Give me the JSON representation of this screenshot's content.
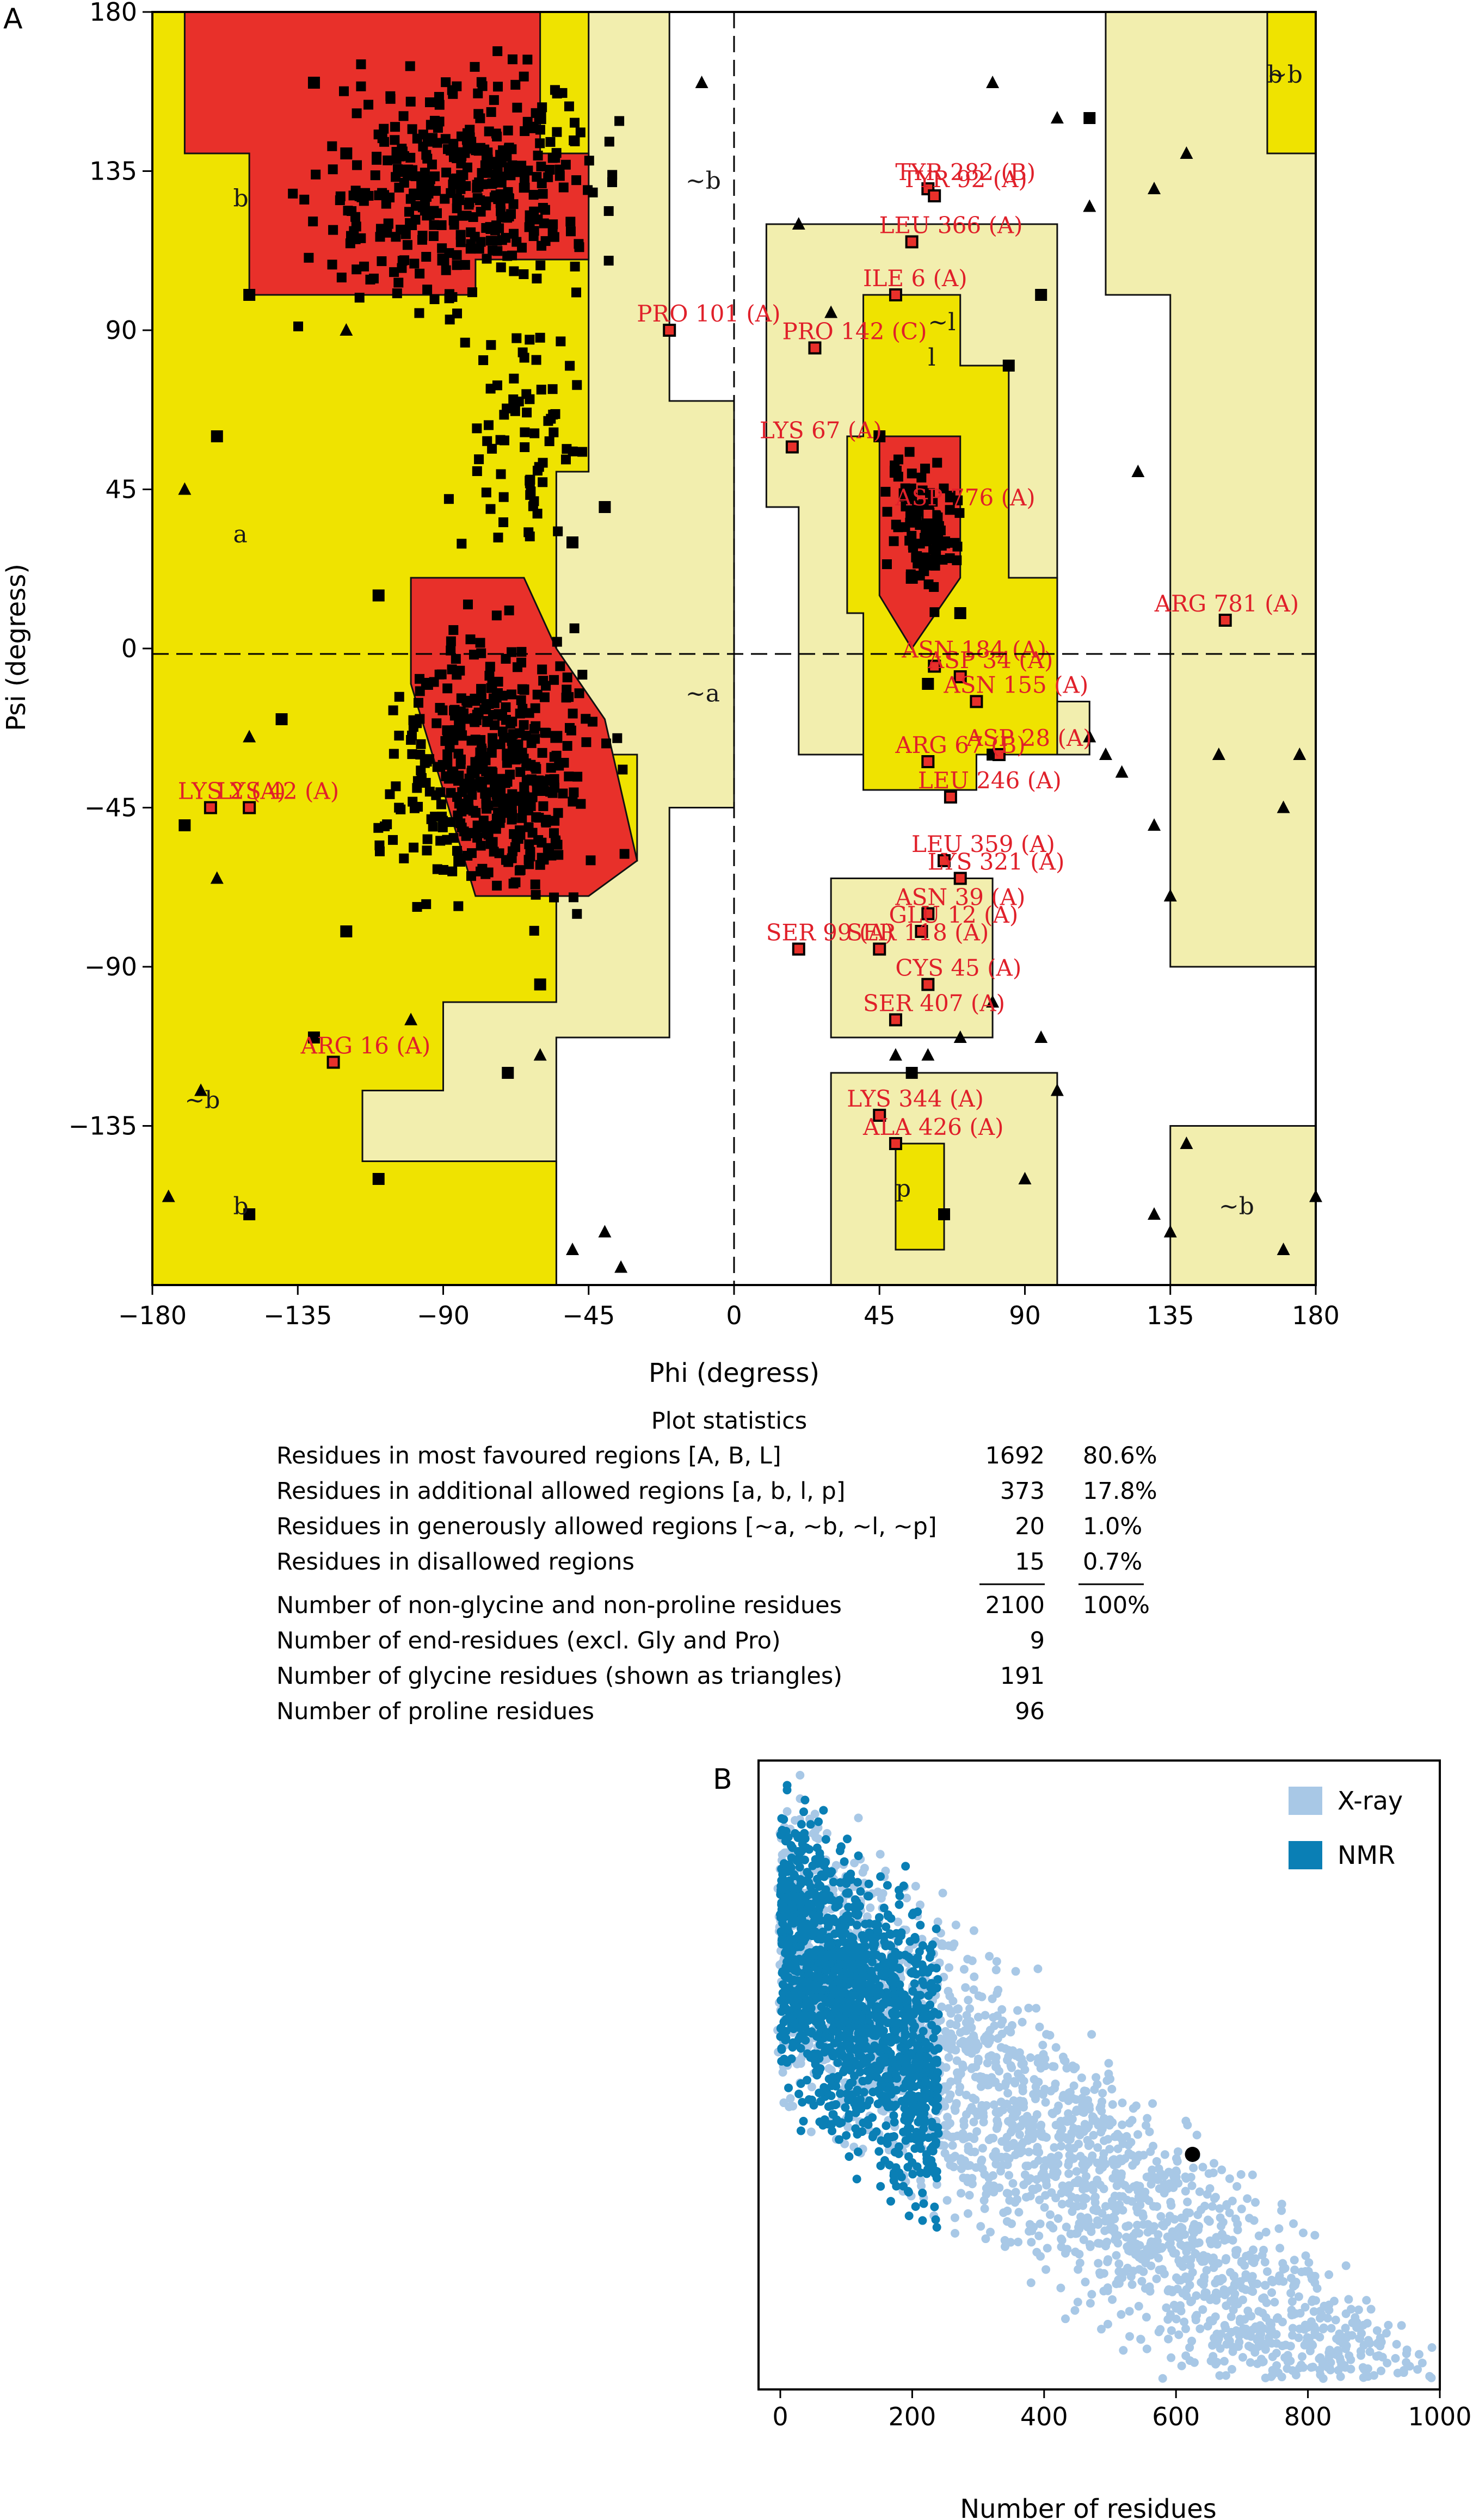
{
  "panel_labels": {
    "a": "A",
    "b": "B"
  },
  "colors": {
    "core": "#e8302a",
    "allowed": "#efe300",
    "generous": "#f2eeae",
    "point": "#000000",
    "outlier_fill": "#e8302a",
    "label_red": "#e0202a",
    "xray": "#a8c8e6",
    "nmr": "#0a7fb5"
  },
  "region_labels": [
    "b",
    "~b",
    "a",
    "~a",
    "l",
    "~l",
    "b",
    "~b",
    "~b",
    "~b",
    "p",
    "b"
  ],
  "outlier_labels": [
    "TYR 282 (B)",
    "TYR 92 (A)",
    "LEU 366 (A)",
    "ILE 6 (A)",
    "PRO 101 (A)",
    "PRO 142 (C)",
    "LYS 67 (A)",
    "ASP 776 (A)",
    "ARG 781 (A)",
    "ASN 184 (A)",
    "ASP 34 (A)",
    "ASN 155 (A)",
    "ASP 28 (A)",
    "ARG 67 (B)",
    "LEU 246 (A)",
    "LEU 359 (A)",
    "LYS 321 (A)",
    "ASN 39 (A)",
    "GLU 12 (A)",
    "SER 118 (A)",
    "SER 99 (A)",
    "CYS 45 (A)",
    "SER 407 (A)",
    "LYS 344 (A)",
    "ALA 426 (A)",
    "ARG 16 (A)",
    "LYS 2 (A)",
    "LYS 42 (A)"
  ],
  "stats": {
    "title": "Plot statistics",
    "rows": [
      {
        "label": "Residues in most favoured regions [A, B, L]",
        "count": "1692",
        "pct": "80.6%"
      },
      {
        "label": "Residues in additional allowed regions [a, b, l, p]",
        "count": "373",
        "pct": "17.8%"
      },
      {
        "label": "Residues in generously allowed regions [~a, ~b, ~l, ~p]",
        "count": "20",
        "pct": "1.0%"
      },
      {
        "label": "Residues in disallowed regions",
        "count": "15",
        "pct": "0.7%"
      },
      {
        "label": "Number of non-glycine and non-proline residues",
        "count": "2100",
        "pct": "100%"
      },
      {
        "label": "Number of end-residues (excl. Gly and Pro)",
        "count": "9",
        "pct": ""
      },
      {
        "label": "Number of glycine residues (shown as triangles)",
        "count": "191",
        "pct": ""
      },
      {
        "label": "Number of proline residues",
        "count": "96",
        "pct": ""
      }
    ]
  },
  "chart_data": [
    {
      "type": "scatter",
      "title": "",
      "xlabel": "Phi (degress)",
      "ylabel": "Psi (degress)",
      "xlim": [
        -180,
        180
      ],
      "ylim": [
        -180,
        180
      ],
      "xticks": [
        -180,
        -135,
        -90,
        -45,
        0,
        45,
        90,
        135,
        180
      ],
      "yticks": [
        -135,
        -90,
        -45,
        0,
        45,
        90,
        135,
        180
      ],
      "grid": false,
      "series": [
        {
          "marker": "square",
          "points": [
            [
              -40,
              40
            ],
            [
              -50,
              30
            ],
            [
              -60,
              -40
            ],
            [
              -65,
              -45
            ],
            [
              -70,
              -30
            ],
            [
              -80,
              -20
            ],
            [
              -100,
              120
            ],
            [
              -120,
              140
            ],
            [
              -75,
              -55
            ],
            [
              -55,
              -25
            ],
            [
              -130,
              160
            ],
            [
              -90,
              110
            ],
            [
              -60,
              150
            ],
            [
              -150,
              100
            ],
            [
              -160,
              60
            ],
            [
              -110,
              15
            ],
            [
              -95,
              -10
            ],
            [
              -85,
              -60
            ],
            [
              -130,
              -110
            ],
            [
              -150,
              -160
            ],
            [
              -110,
              -150
            ],
            [
              -70,
              -120
            ],
            [
              -170,
              -50
            ],
            [
              -140,
              -20
            ],
            [
              -120,
              -80
            ],
            [
              -60,
              -95
            ],
            [
              60,
              40
            ],
            [
              55,
              20
            ],
            [
              65,
              30
            ],
            [
              70,
              10
            ],
            [
              45,
              60
            ],
            [
              50,
              50
            ],
            [
              60,
              -10
            ],
            [
              75,
              -15
            ],
            [
              80,
              -30
            ],
            [
              55,
              -120
            ],
            [
              65,
              -160
            ],
            [
              85,
              80
            ],
            [
              95,
              100
            ],
            [
              110,
              150
            ]
          ]
        },
        {
          "marker": "triangle",
          "points": [
            [
              80,
              160
            ],
            [
              100,
              150
            ],
            [
              110,
              125
            ],
            [
              125,
              50
            ],
            [
              130,
              130
            ],
            [
              140,
              140
            ],
            [
              150,
              -30
            ],
            [
              170,
              -45
            ],
            [
              175,
              -30
            ],
            [
              110,
              -25
            ],
            [
              115,
              -30
            ],
            [
              120,
              -35
            ],
            [
              130,
              -50
            ],
            [
              135,
              -70
            ],
            [
              140,
              -140
            ],
            [
              130,
              -160
            ],
            [
              135,
              -165
            ],
            [
              90,
              -150
            ],
            [
              100,
              -125
            ],
            [
              95,
              -110
            ],
            [
              80,
              -100
            ],
            [
              70,
              -110
            ],
            [
              60,
              -115
            ],
            [
              50,
              -115
            ],
            [
              -170,
              45
            ],
            [
              -160,
              -65
            ],
            [
              -150,
              -25
            ],
            [
              -165,
              -125
            ],
            [
              -175,
              -155
            ],
            [
              -100,
              -105
            ],
            [
              -60,
              -115
            ],
            [
              -50,
              -170
            ],
            [
              -40,
              -165
            ],
            [
              -35,
              -175
            ],
            [
              -120,
              90
            ],
            [
              170,
              -170
            ],
            [
              -10,
              160
            ],
            [
              20,
              120
            ],
            [
              30,
              95
            ],
            [
              180,
              -155
            ]
          ]
        },
        {
          "marker": "outlier",
          "points": [
            [
              60,
              130
            ],
            [
              62,
              128
            ],
            [
              55,
              115
            ],
            [
              50,
              100
            ],
            [
              -20,
              90
            ],
            [
              25,
              85
            ],
            [
              18,
              57
            ],
            [
              60,
              38
            ],
            [
              152,
              8
            ],
            [
              62,
              -5
            ],
            [
              70,
              -8
            ],
            [
              75,
              -15
            ],
            [
              82,
              -30
            ],
            [
              60,
              -32
            ],
            [
              67,
              -42
            ],
            [
              65,
              -60
            ],
            [
              70,
              -65
            ],
            [
              60,
              -75
            ],
            [
              58,
              -80
            ],
            [
              45,
              -85
            ],
            [
              20,
              -85
            ],
            [
              60,
              -95
            ],
            [
              50,
              -105
            ],
            [
              45,
              -132
            ],
            [
              50,
              -140
            ],
            [
              -124,
              -117
            ],
            [
              -162,
              -45
            ],
            [
              -150,
              -45
            ]
          ]
        }
      ]
    },
    {
      "type": "scatter",
      "title": "",
      "xlabel": "Number of residues",
      "ylabel": "",
      "xlim": [
        0,
        1000
      ],
      "xticks": [
        0,
        200,
        400,
        600,
        800,
        1000
      ],
      "legend": "top-right",
      "series": [
        {
          "name": "X-ray",
          "note": "dense cloud, values decreasing as residues increase, spanning 0–1000"
        },
        {
          "name": "NMR",
          "note": "dense cloud concentrated at 0–250 residues"
        }
      ],
      "highlight_point": {
        "x": 625
      }
    }
  ]
}
